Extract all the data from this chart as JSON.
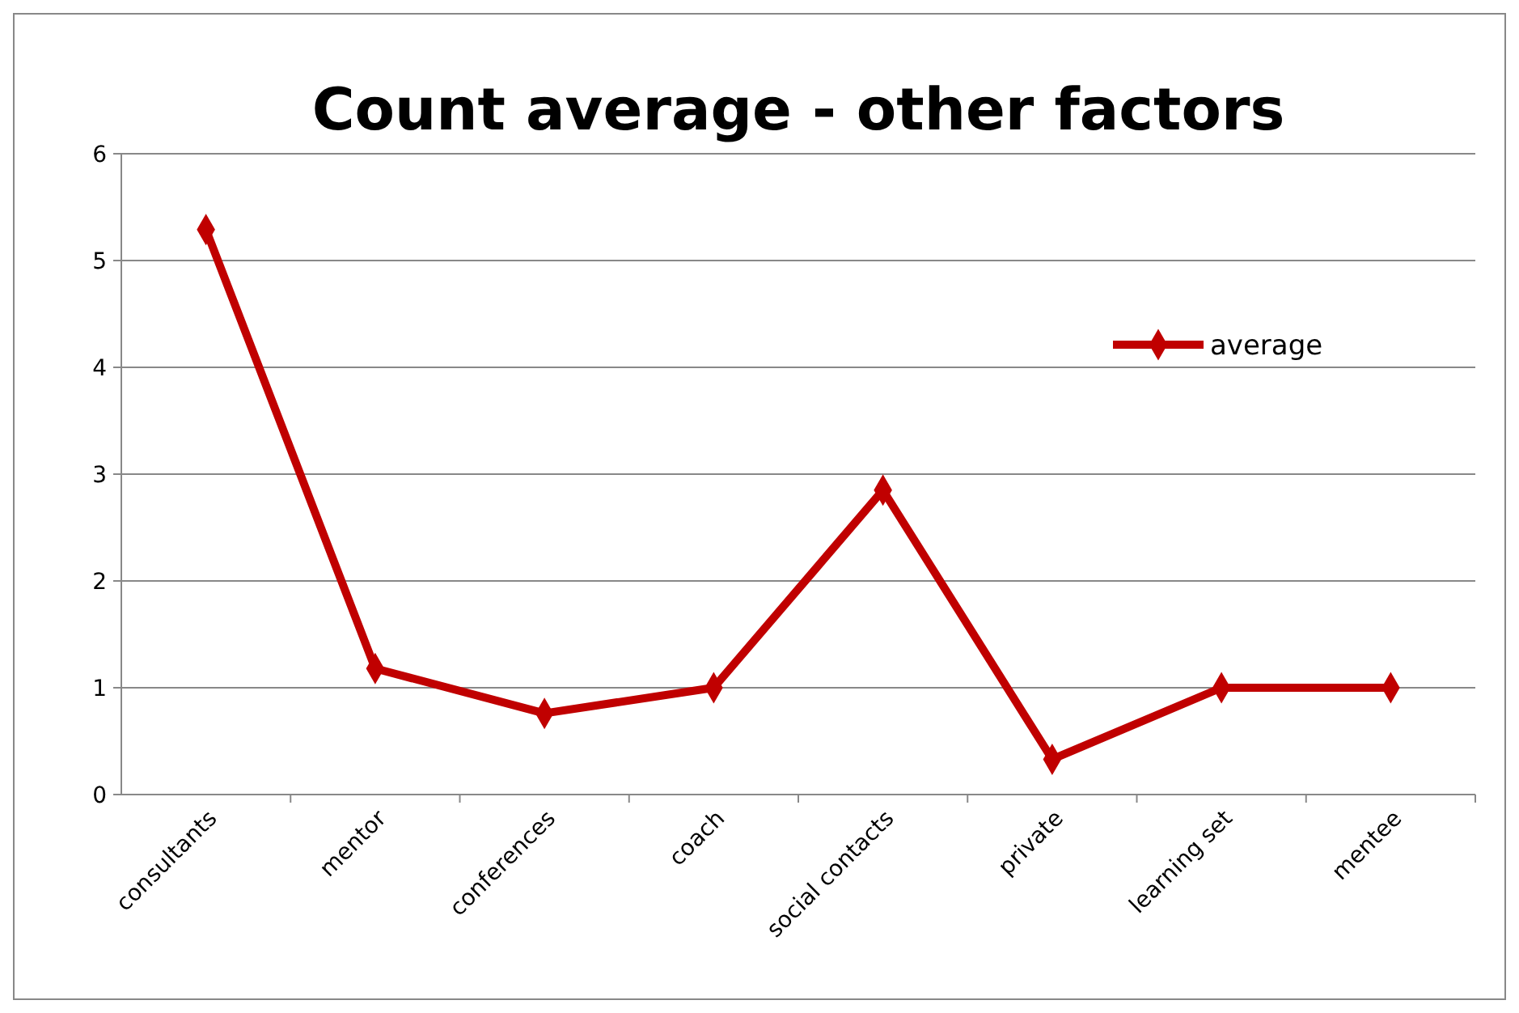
{
  "chart_data": {
    "type": "line",
    "title": "Count  average - other factors",
    "categories": [
      "consultants",
      "mentor",
      "conferences",
      "coach",
      "social contacts",
      "private",
      "learning set",
      "mentee"
    ],
    "series": [
      {
        "name": "average",
        "color": "#c00000",
        "values": [
          5.29,
          1.18,
          0.76,
          1,
          2.85,
          0.33,
          1,
          1
        ]
      }
    ],
    "ylim": [
      0,
      6
    ],
    "yticks": [
      0,
      1,
      2,
      3,
      4,
      5,
      6
    ],
    "grid": "y",
    "legend": "right",
    "marker": "diamond",
    "line_style": "solid"
  }
}
